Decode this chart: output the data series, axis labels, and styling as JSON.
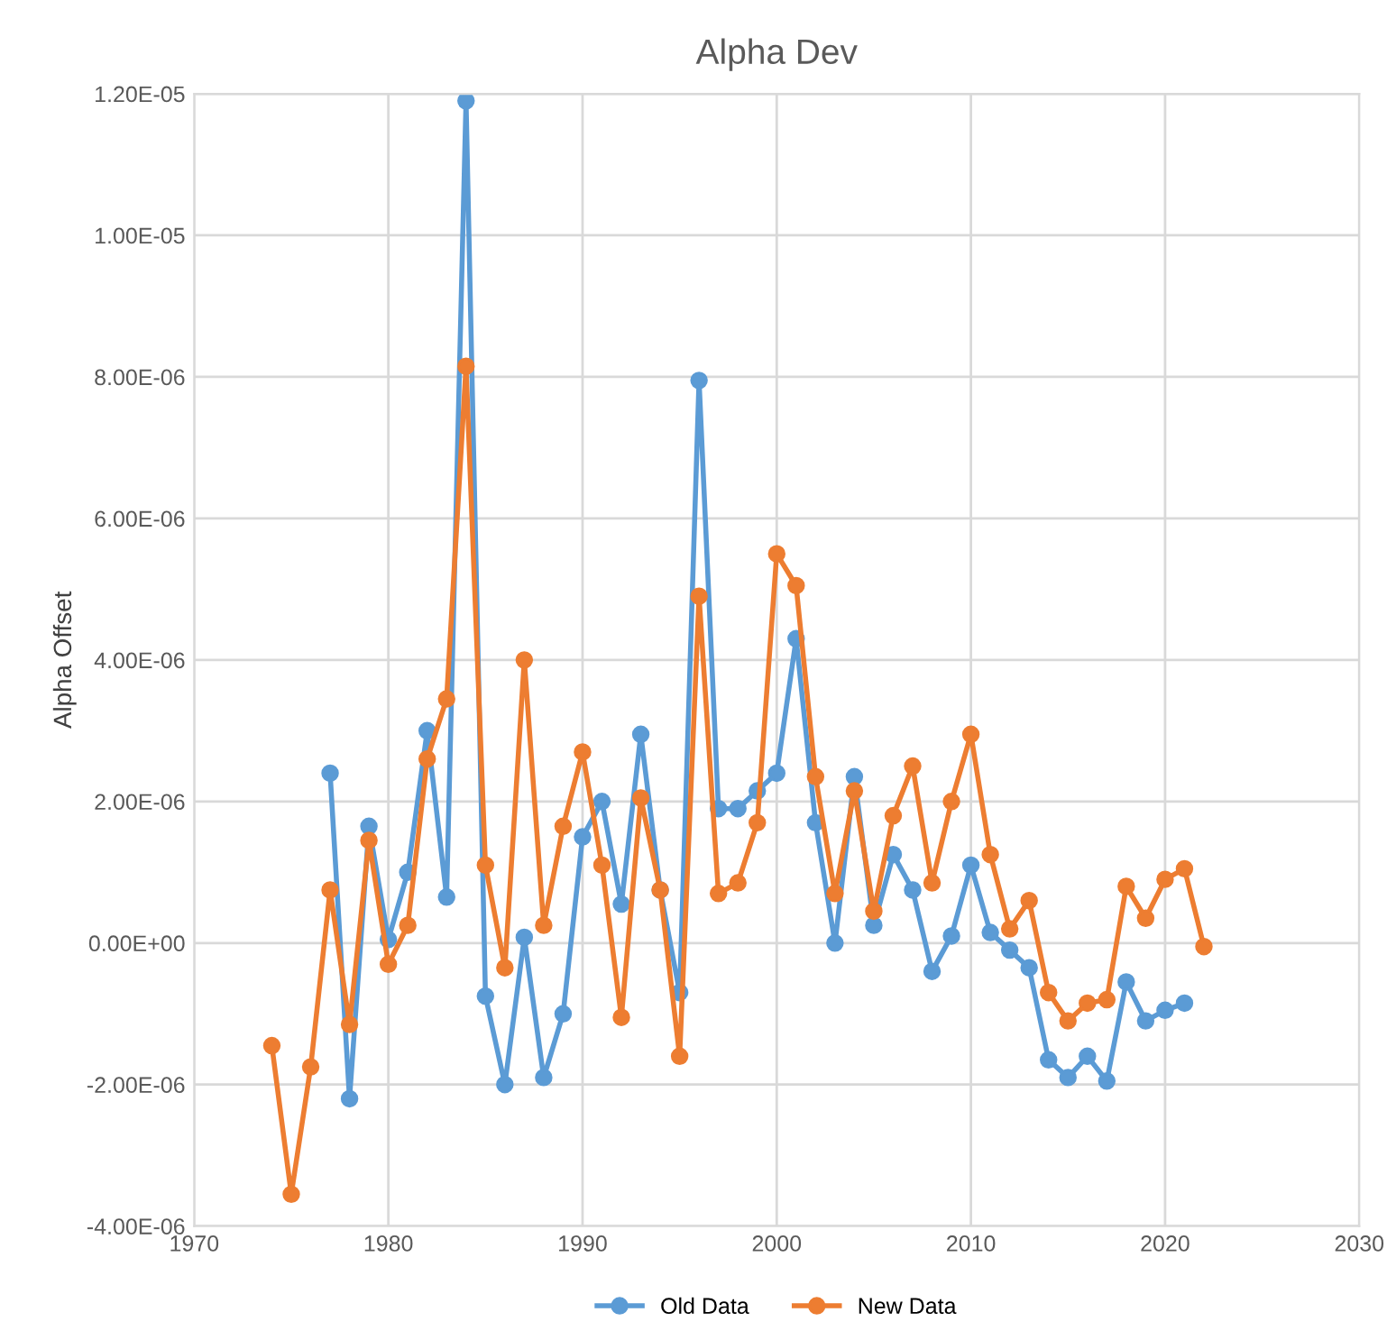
{
  "chart_data": {
    "type": "line",
    "title": "Alpha Dev",
    "ylabel": "Alpha Offset",
    "xlim": [
      1970,
      2030
    ],
    "xticks": [
      1970,
      1980,
      1990,
      2000,
      2010,
      2020,
      2030
    ],
    "ylim": [
      -4e-06,
      1.2e-05
    ],
    "yticks": [
      {
        "value": -4e-06,
        "label": "-4.00E-06"
      },
      {
        "value": -2e-06,
        "label": "-2.00E-06"
      },
      {
        "value": 0,
        "label": "0.00E+00"
      },
      {
        "value": 2e-06,
        "label": "2.00E-06"
      },
      {
        "value": 4e-06,
        "label": "4.00E-06"
      },
      {
        "value": 6e-06,
        "label": "6.00E-06"
      },
      {
        "value": 8e-06,
        "label": "8.00E-06"
      },
      {
        "value": 1e-05,
        "label": "1.00E-05"
      },
      {
        "value": 1.2e-05,
        "label": "1.20E-05"
      }
    ],
    "grid": true,
    "legend": "bottom",
    "marker": "circle",
    "series": [
      {
        "name": "Old Data",
        "color": "#5b9bd5",
        "x": [
          1977,
          1978,
          1979,
          1980,
          1981,
          1982,
          1983,
          1984,
          1985,
          1986,
          1987,
          1988,
          1989,
          1990,
          1991,
          1992,
          1993,
          1994,
          1995,
          1996,
          1997,
          1998,
          1999,
          2000,
          2001,
          2002,
          2003,
          2004,
          2005,
          2006,
          2007,
          2008,
          2009,
          2010,
          2011,
          2012,
          2013,
          2014,
          2015,
          2016,
          2017,
          2018,
          2019,
          2020,
          2021
        ],
        "values": [
          2.4e-06,
          -2.2e-06,
          1.65e-06,
          5e-08,
          1e-06,
          3e-06,
          6.5e-07,
          1.19e-05,
          -7.5e-07,
          -2e-06,
          8e-08,
          -1.9e-06,
          -1e-06,
          1.5e-06,
          2e-06,
          5.5e-07,
          2.95e-06,
          7.5e-07,
          -7e-07,
          7.95e-06,
          1.9e-06,
          1.9e-06,
          2.15e-06,
          2.4e-06,
          4.3e-06,
          1.7e-06,
          0.0,
          2.35e-06,
          2.5e-07,
          1.25e-06,
          7.5e-07,
          -4e-07,
          1e-07,
          1.1e-06,
          1.5e-07,
          -1e-07,
          -3.5e-07,
          -1.65e-06,
          -1.9e-06,
          -1.6e-06,
          -1.95e-06,
          -5.5e-07,
          -1.1e-06,
          -9.5e-07,
          -8.5e-07
        ]
      },
      {
        "name": "New Data",
        "color": "#ed7d31",
        "x": [
          1974,
          1975,
          1976,
          1977,
          1978,
          1979,
          1980,
          1981,
          1982,
          1983,
          1984,
          1985,
          1986,
          1987,
          1988,
          1989,
          1990,
          1991,
          1992,
          1993,
          1994,
          1995,
          1996,
          1997,
          1998,
          1999,
          2000,
          2001,
          2002,
          2003,
          2004,
          2005,
          2006,
          2007,
          2008,
          2009,
          2010,
          2011,
          2012,
          2013,
          2014,
          2015,
          2016,
          2017,
          2018,
          2019,
          2020,
          2021,
          2022
        ],
        "values": [
          -1.45e-06,
          -3.55e-06,
          -1.75e-06,
          7.5e-07,
          -1.15e-06,
          1.45e-06,
          -3e-07,
          2.5e-07,
          2.6e-06,
          3.45e-06,
          8.15e-06,
          1.1e-06,
          -3.5e-07,
          4e-06,
          2.5e-07,
          1.65e-06,
          2.7e-06,
          1.1e-06,
          -1.05e-06,
          2.05e-06,
          7.5e-07,
          -1.6e-06,
          4.9e-06,
          7e-07,
          8.5e-07,
          1.7e-06,
          5.5e-06,
          5.05e-06,
          2.35e-06,
          7e-07,
          2.15e-06,
          4.5e-07,
          1.8e-06,
          2.5e-06,
          8.5e-07,
          2e-06,
          2.95e-06,
          1.25e-06,
          2e-07,
          6e-07,
          -7e-07,
          -1.1e-06,
          -8.5e-07,
          -8e-07,
          8e-07,
          3.5e-07,
          9e-07,
          1.05e-06,
          -5e-08
        ]
      }
    ]
  }
}
